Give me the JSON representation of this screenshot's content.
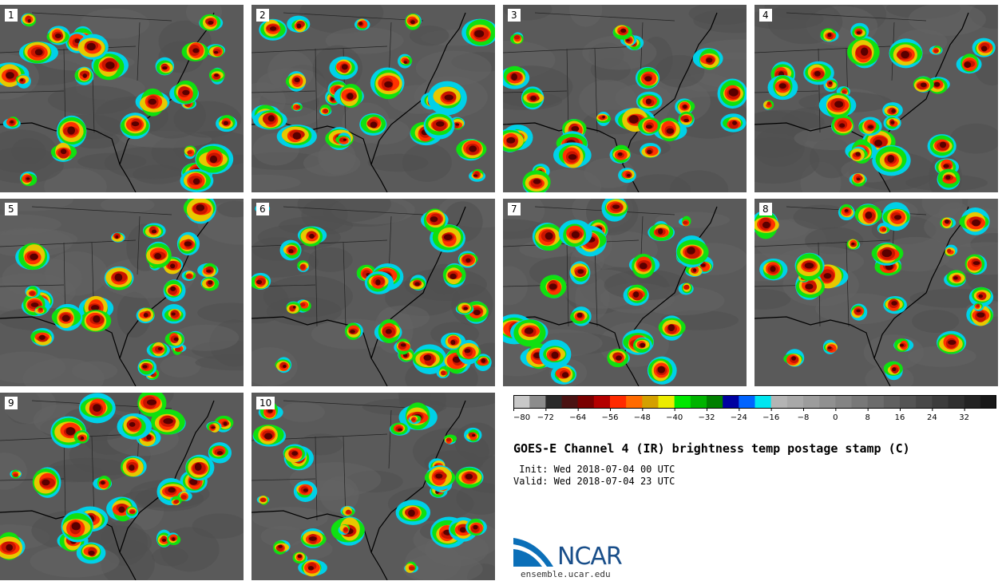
{
  "panels": [
    {
      "label": "1"
    },
    {
      "label": "2"
    },
    {
      "label": "3"
    },
    {
      "label": "4"
    },
    {
      "label": "5"
    },
    {
      "label": "6"
    },
    {
      "label": "7"
    },
    {
      "label": "8"
    },
    {
      "label": "9"
    },
    {
      "label": "10"
    }
  ],
  "colorbar": {
    "colors": [
      "#c8c8c8",
      "#8c8c8c",
      "#2a2a2a",
      "#4a1212",
      "#7a0000",
      "#b40000",
      "#ff2a00",
      "#ff6a00",
      "#d4a000",
      "#ecec00",
      "#00e800",
      "#00b400",
      "#008000",
      "#0000a0",
      "#0064ff",
      "#00e6f0",
      "#b4b4b4",
      "#a8a8a8",
      "#9c9c9c",
      "#909090",
      "#848484",
      "#787878",
      "#6c6c6c",
      "#606060",
      "#545454",
      "#484848",
      "#3c3c3c",
      "#303030",
      "#242424",
      "#181818"
    ],
    "tick_labels": [
      "−80",
      "−72",
      "−64",
      "−56",
      "−48",
      "−40",
      "−32",
      "−24",
      "−16",
      "−8",
      "0",
      "8",
      "16",
      "24",
      "32"
    ]
  },
  "title": "GOES-E Channel 4 (IR) brightness temp postage stamp (C)",
  "init": " Init: Wed 2018-07-04 00 UTC",
  "valid": "Valid: Wed 2018-07-04 23 UTC",
  "logo": {
    "text": "NCAR",
    "url": "ensemble.ucar.edu"
  }
}
